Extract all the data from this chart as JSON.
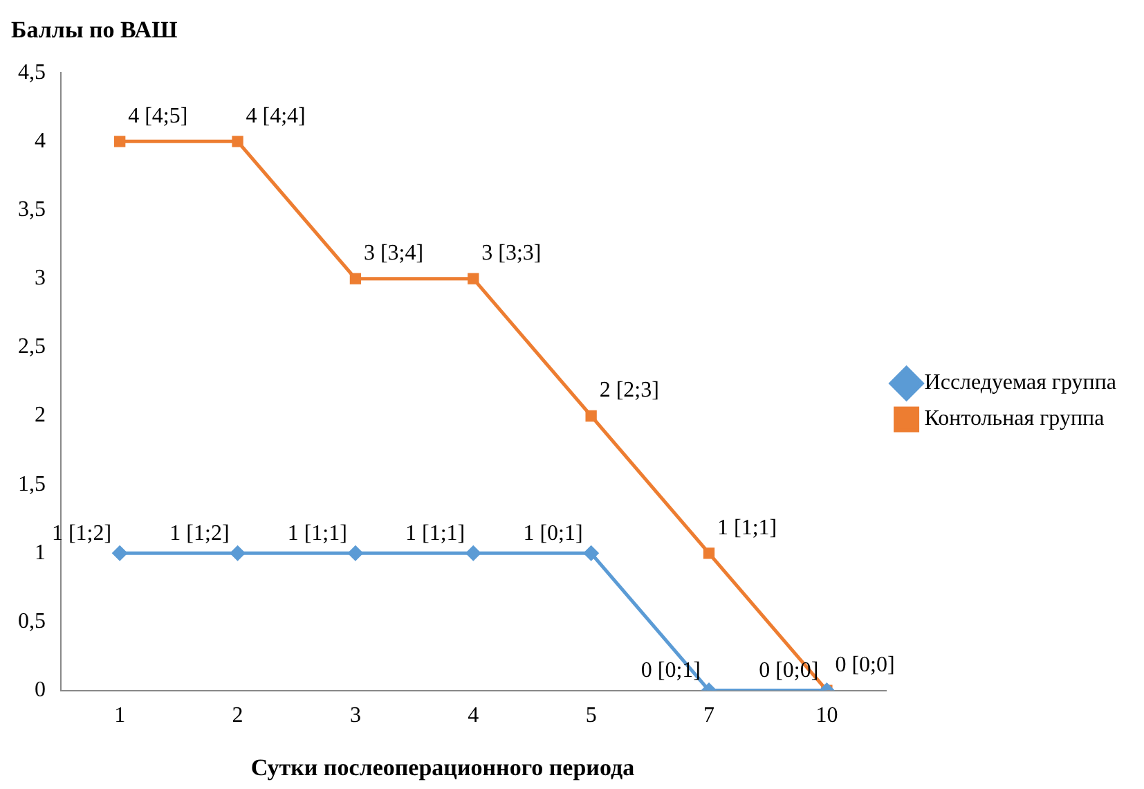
{
  "chart_data": {
    "type": "line",
    "ylabel": "Баллы по ВАШ",
    "xlabel": "Сутки послеоперационного периода",
    "categories": [
      "1",
      "2",
      "3",
      "4",
      "5",
      "7",
      "10"
    ],
    "series": [
      {
        "name": "Исследуемая группа",
        "color": "#5b9bd5",
        "marker": "diamond",
        "values": [
          1,
          1,
          1,
          1,
          1,
          0,
          0
        ],
        "value_labels": [
          "1 [1;2]",
          "1 [1;2]",
          "1 [1;1]",
          "1 [1;1]",
          "1 [0;1]",
          "0 [0;1]",
          "0 [0;0]"
        ]
      },
      {
        "name": "Контольная группа",
        "color": "#ed7d31",
        "marker": "square",
        "values": [
          4,
          4,
          3,
          3,
          2,
          1,
          0
        ],
        "value_labels": [
          "4 [4;5]",
          "4 [4;4]",
          "3 [3;4]",
          "3 [3;3]",
          "2 [2;3]",
          "1 [1;1]",
          "0 [0;0]"
        ]
      }
    ],
    "ylim": [
      0,
      4.5
    ],
    "yticks": [
      0,
      {
        "value": 0.5,
        "label": "0,5"
      },
      1,
      {
        "value": 1.5,
        "label": "1,5"
      },
      2,
      {
        "value": 2.5,
        "label": "2,5"
      },
      3,
      {
        "value": 3.5,
        "label": "3,5"
      },
      4,
      {
        "value": 4.5,
        "label": "4,5"
      }
    ],
    "grid": false,
    "legend": "right",
    "line_style": "solid"
  }
}
